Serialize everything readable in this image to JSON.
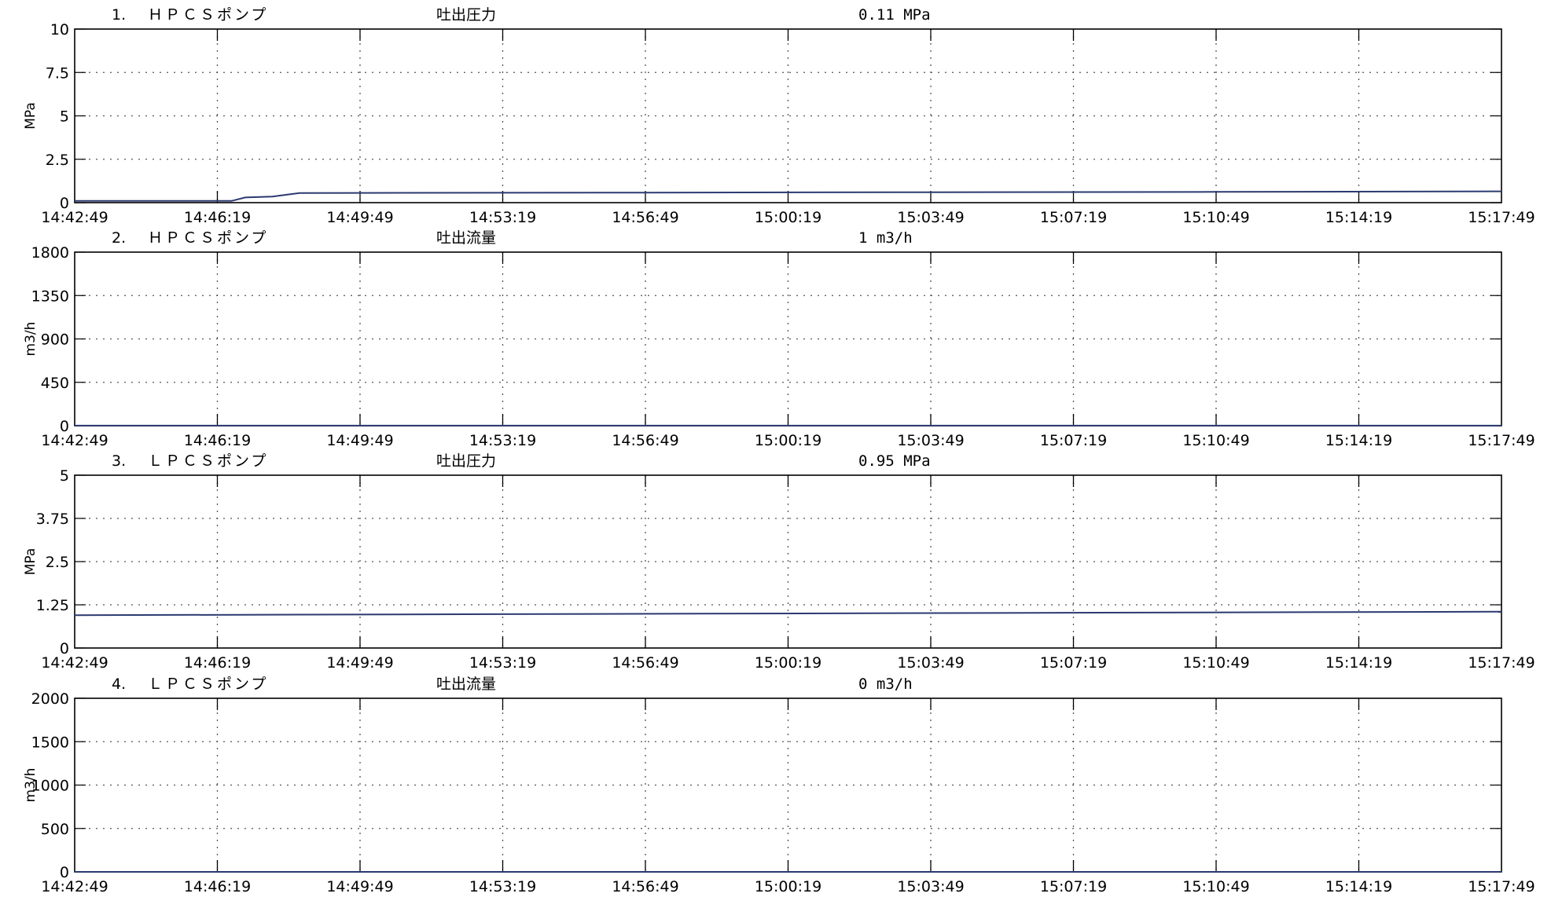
{
  "colors": {
    "line": "#2b3a70",
    "axis": "#000000",
    "grid": "#555555"
  },
  "x_ticks": [
    "14:42:49",
    "14:46:19",
    "14:49:49",
    "14:53:19",
    "14:56:49",
    "15:00:19",
    "15:03:49",
    "15:07:19",
    "15:10:49",
    "15:14:19",
    "15:17:49"
  ],
  "chart_data": [
    {
      "type": "line",
      "number": "1.",
      "name": "ＨＰＣＳポンプ",
      "parameter": "吐出圧力",
      "current_value": "0.11 MPa",
      "ylabel": "MPa",
      "ylim": [
        0,
        10
      ],
      "y_ticks": [
        "0",
        "2.5",
        "5",
        "7.5",
        "10"
      ],
      "x": [
        "14:42:49",
        "14:46:19",
        "14:46:40",
        "14:47:00",
        "14:47:40",
        "14:48:20",
        "14:49:49",
        "14:56:49",
        "15:03:49",
        "15:10:49",
        "15:17:49"
      ],
      "values": [
        0.1,
        0.1,
        0.1,
        0.3,
        0.35,
        0.55,
        0.56,
        0.58,
        0.6,
        0.62,
        0.65
      ],
      "grid": true
    },
    {
      "type": "line",
      "number": "2.",
      "name": "ＨＰＣＳポンプ",
      "parameter": "吐出流量",
      "current_value": "1 m3/h",
      "ylabel": "m3/h",
      "ylim": [
        0,
        1800
      ],
      "y_ticks": [
        "0",
        "450",
        "900",
        "1350",
        "1800"
      ],
      "x": [
        "14:42:49",
        "15:17:49"
      ],
      "values": [
        1,
        1
      ],
      "grid": true
    },
    {
      "type": "line",
      "number": "3.",
      "name": "ＬＰＣＳポンプ",
      "parameter": "吐出圧力",
      "current_value": "0.95 MPa",
      "ylabel": "MPa",
      "ylim": [
        0,
        5
      ],
      "y_ticks": [
        "0",
        "1.25",
        "2.5",
        "3.75",
        "5"
      ],
      "x": [
        "14:42:49",
        "15:17:49"
      ],
      "values": [
        0.95,
        1.05
      ],
      "grid": true
    },
    {
      "type": "line",
      "number": "4.",
      "name": "ＬＰＣＳポンプ",
      "parameter": "吐出流量",
      "current_value": "0 m3/h",
      "ylabel": "m3/h",
      "ylim": [
        0,
        2000
      ],
      "y_ticks": [
        "0",
        "500",
        "1000",
        "1500",
        "2000"
      ],
      "x": [
        "14:42:49",
        "15:17:49"
      ],
      "values": [
        0,
        0
      ],
      "grid": true
    }
  ]
}
